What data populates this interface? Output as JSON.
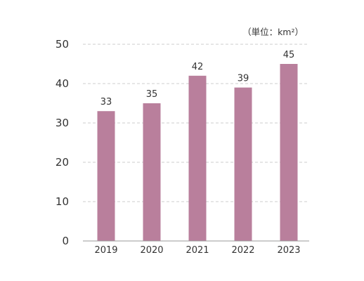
{
  "chart_data": {
    "type": "bar",
    "categories": [
      "2019",
      "2020",
      "2021",
      "2022",
      "2023"
    ],
    "values": [
      33,
      35,
      42,
      39,
      45
    ],
    "data_labels": [
      "33",
      "35",
      "42",
      "39",
      "45"
    ],
    "unit": "（単位：km²）",
    "ylim": [
      0,
      50
    ],
    "yticks": [
      "0",
      "10",
      "20",
      "30",
      "40",
      "50"
    ],
    "grid": true,
    "legend": "none",
    "bar_color": "#b97f9c",
    "grid_color": "#cccccc",
    "axis_color": "#999999"
  }
}
